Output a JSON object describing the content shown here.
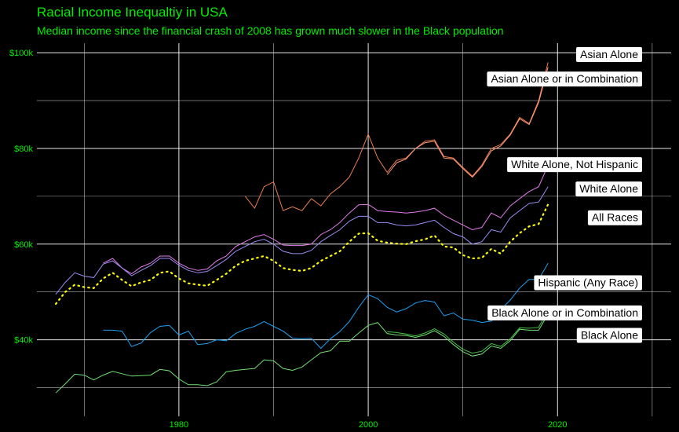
{
  "chart_data": {
    "type": "line",
    "title": "Racial Income Inequaltiy in USA",
    "subtitle": "Median income since the financial crash of 2008 has grown much slower in the Black population",
    "xlabel": "",
    "ylabel": "",
    "xlim": [
      1965,
      2032
    ],
    "ylim": [
      24000,
      102000
    ],
    "x_ticks": [
      1980,
      2000,
      2020
    ],
    "x_tick_labels": [
      "1980",
      "2000",
      "2020"
    ],
    "y_ticks": [
      40000,
      60000,
      80000,
      100000
    ],
    "y_tick_labels": [
      "$40k",
      "$60k",
      "$80k",
      "$100k"
    ],
    "grid": true,
    "legend": "direct labels at right",
    "series": [
      {
        "name": "Asian Alone",
        "color": "#ee7e4f",
        "dash": false,
        "x": [
          1987,
          1988,
          1989,
          1990,
          1991,
          1992,
          1993,
          1994,
          1995,
          1996,
          1997,
          1998,
          1999,
          2000,
          2001,
          2002,
          2003,
          2004,
          2005,
          2006,
          2007,
          2008,
          2009,
          2010,
          2011,
          2012,
          2013,
          2014,
          2015,
          2016,
          2017,
          2018,
          2019
        ],
        "y": [
          70000,
          67500,
          72000,
          73000,
          67000,
          67800,
          67000,
          69500,
          68000,
          70500,
          72000,
          74000,
          78000,
          83000,
          78000,
          75000,
          77500,
          78000,
          80000,
          81500,
          81800,
          78300,
          78000,
          76000,
          74200,
          76500,
          80000,
          80800,
          83000,
          86500,
          85200,
          90000,
          98000
        ]
      },
      {
        "name": "Asian Alone or in Combination",
        "color": "#ff9a7a",
        "dash": false,
        "x": [
          2002,
          2003,
          2004,
          2005,
          2006,
          2007,
          2008,
          2009,
          2010,
          2011,
          2012,
          2013,
          2014,
          2015,
          2016,
          2017,
          2018,
          2019
        ],
        "y": [
          74500,
          77000,
          77800,
          80000,
          81200,
          81500,
          78000,
          77800,
          75800,
          74000,
          76200,
          79500,
          80500,
          82800,
          86200,
          85000,
          89600,
          97000
        ]
      },
      {
        "name": "White Alone, Not Hispanic",
        "color": "#e47aed",
        "dash": false,
        "x": [
          1972,
          1973,
          1974,
          1975,
          1976,
          1977,
          1978,
          1979,
          1980,
          1981,
          1982,
          1983,
          1984,
          1985,
          1986,
          1987,
          1988,
          1989,
          1990,
          1991,
          1992,
          1993,
          1994,
          1995,
          1996,
          1997,
          1998,
          1999,
          2000,
          2001,
          2002,
          2003,
          2004,
          2005,
          2006,
          2007,
          2008,
          2009,
          2010,
          2011,
          2012,
          2013,
          2014,
          2015,
          2016,
          2017,
          2018,
          2019
        ],
        "y": [
          56000,
          57000,
          55000,
          53800,
          55200,
          56000,
          57500,
          57500,
          56000,
          55000,
          54500,
          54800,
          56500,
          57500,
          59500,
          60500,
          61500,
          62000,
          61000,
          59800,
          59700,
          59700,
          60000,
          62000,
          63000,
          64500,
          66500,
          68200,
          68300,
          67000,
          66800,
          66700,
          66500,
          66700,
          67000,
          67500,
          66000,
          65000,
          64000,
          63000,
          63500,
          66500,
          65500,
          68000,
          69500,
          71000,
          72000,
          76500
        ]
      },
      {
        "name": "White Alone",
        "color": "#9c8af4",
        "dash": false,
        "x": [
          1967,
          1968,
          1969,
          1970,
          1971,
          1972,
          1973,
          1974,
          1975,
          1976,
          1977,
          1978,
          1979,
          1980,
          1981,
          1982,
          1983,
          1984,
          1985,
          1986,
          1987,
          1988,
          1989,
          1990,
          1991,
          1992,
          1993,
          1994,
          1995,
          1996,
          1997,
          1998,
          1999,
          2000,
          2001,
          2002,
          2003,
          2004,
          2005,
          2006,
          2007,
          2008,
          2009,
          2010,
          2011,
          2012,
          2013,
          2014,
          2015,
          2016,
          2017,
          2018,
          2019
        ],
        "y": [
          49500,
          52000,
          54000,
          53300,
          53000,
          55800,
          56500,
          55000,
          53400,
          54500,
          55500,
          57000,
          57000,
          55600,
          54500,
          54000,
          54300,
          55500,
          56800,
          58500,
          59500,
          60500,
          61000,
          60000,
          58500,
          58000,
          58000,
          58700,
          60500,
          61800,
          63000,
          64800,
          65800,
          65800,
          64500,
          64500,
          64000,
          63800,
          64000,
          64500,
          65000,
          63500,
          62200,
          61500,
          60000,
          60500,
          63000,
          62500,
          65500,
          67000,
          68500,
          68800,
          72000
        ]
      },
      {
        "name": "All Races",
        "color": "#ffff00",
        "dash": true,
        "x": [
          1967,
          1968,
          1969,
          1970,
          1971,
          1972,
          1973,
          1974,
          1975,
          1976,
          1977,
          1978,
          1979,
          1980,
          1981,
          1982,
          1983,
          1984,
          1985,
          1986,
          1987,
          1988,
          1989,
          1990,
          1991,
          1992,
          1993,
          1994,
          1995,
          1996,
          1997,
          1998,
          1999,
          2000,
          2001,
          2002,
          2003,
          2004,
          2005,
          2006,
          2007,
          2008,
          2009,
          2010,
          2011,
          2012,
          2013,
          2014,
          2015,
          2016,
          2017,
          2018,
          2019
        ],
        "y": [
          47500,
          50000,
          51500,
          51000,
          50800,
          52800,
          54000,
          52500,
          51200,
          52000,
          52500,
          54000,
          54300,
          52800,
          51800,
          51500,
          51300,
          52500,
          53800,
          55500,
          56500,
          57000,
          57500,
          56500,
          55000,
          54600,
          54400,
          55000,
          56500,
          57500,
          58500,
          60500,
          62200,
          62300,
          60700,
          60300,
          60100,
          60000,
          60600,
          61000,
          61800,
          59500,
          59300,
          57700,
          57000,
          57100,
          59000,
          58000,
          60500,
          62300,
          63700,
          64200,
          68300
        ]
      },
      {
        "name": "Hispanic (Any Race)",
        "color": "#1da1f2",
        "dash": false,
        "x": [
          1972,
          1973,
          1974,
          1975,
          1976,
          1977,
          1978,
          1979,
          1980,
          1981,
          1982,
          1983,
          1984,
          1985,
          1986,
          1987,
          1988,
          1989,
          1990,
          1991,
          1992,
          1993,
          1994,
          1995,
          1996,
          1997,
          1998,
          1999,
          2000,
          2001,
          2002,
          2003,
          2004,
          2005,
          2006,
          2007,
          2008,
          2009,
          2010,
          2011,
          2012,
          2013,
          2014,
          2015,
          2016,
          2017,
          2018,
          2019
        ],
        "y": [
          42000,
          42000,
          41800,
          38600,
          39300,
          41500,
          42800,
          43000,
          41000,
          41800,
          39000,
          39200,
          40000,
          39800,
          41300,
          42200,
          42800,
          43800,
          42800,
          41800,
          40300,
          40200,
          40300,
          38200,
          40200,
          41700,
          43800,
          46800,
          49400,
          48600,
          46800,
          45800,
          46500,
          47700,
          48200,
          47900,
          45000,
          45600,
          44300,
          44100,
          43600,
          43900,
          46300,
          48300,
          50800,
          52600,
          52600,
          56000
        ]
      },
      {
        "name": "Black Alone or in Combination",
        "color": "#46c446",
        "dash": false,
        "x": [
          2002,
          2003,
          2004,
          2005,
          2006,
          2007,
          2008,
          2009,
          2010,
          2011,
          2012,
          2013,
          2014,
          2015,
          2016,
          2017,
          2018,
          2019
        ],
        "y": [
          41700,
          41500,
          41200,
          40800,
          41400,
          42300,
          41200,
          39500,
          38000,
          37200,
          37600,
          39200,
          38600,
          40200,
          42500,
          42400,
          42600,
          46200
        ]
      },
      {
        "name": "Black Alone",
        "color": "#70e070",
        "dash": false,
        "x": [
          1967,
          1968,
          1969,
          1970,
          1971,
          1972,
          1973,
          1974,
          1975,
          1976,
          1977,
          1978,
          1979,
          1980,
          1981,
          1982,
          1983,
          1984,
          1985,
          1986,
          1987,
          1988,
          1989,
          1990,
          1991,
          1992,
          1993,
          1994,
          1995,
          1996,
          1997,
          1998,
          1999,
          2000,
          2001,
          2002,
          2003,
          2004,
          2005,
          2006,
          2007,
          2008,
          2009,
          2010,
          2011,
          2012,
          2013,
          2014,
          2015,
          2016,
          2017,
          2018,
          2019
        ],
        "y": [
          28900,
          30800,
          32800,
          32600,
          31600,
          32600,
          33400,
          32900,
          32400,
          32500,
          32600,
          33800,
          33500,
          31800,
          30600,
          30600,
          30400,
          31200,
          33300,
          33600,
          33800,
          34000,
          35800,
          35600,
          34000,
          33600,
          34300,
          35800,
          37300,
          37700,
          39700,
          39700,
          41400,
          43000,
          43600,
          41300,
          41000,
          40900,
          40500,
          41000,
          41900,
          40700,
          39000,
          37500,
          36600,
          37000,
          38700,
          38200,
          39800,
          42200,
          42000,
          42000,
          45400
        ]
      }
    ],
    "labels": [
      {
        "text": "Asian Alone",
        "series": "Asian Alone",
        "value": 99700
      },
      {
        "text": "Asian Alone or in Combination",
        "series": "Asian Alone or in Combination",
        "value": 94600
      },
      {
        "text": "White Alone, Not Hispanic",
        "series": "White Alone, Not Hispanic",
        "value": 76700
      },
      {
        "text": "White Alone",
        "series": "White Alone",
        "value": 71600
      },
      {
        "text": "All Races",
        "series": "All Races",
        "value": 65600
      },
      {
        "text": "Hispanic (Any Race)",
        "series": "Hispanic (Any Race)",
        "value": 52000
      },
      {
        "text": "Black Alone or in Combination",
        "series": "Black Alone or in Combination",
        "value": 45700
      },
      {
        "text": "Black Alone",
        "series": "Black Alone",
        "value": 41000
      }
    ]
  }
}
